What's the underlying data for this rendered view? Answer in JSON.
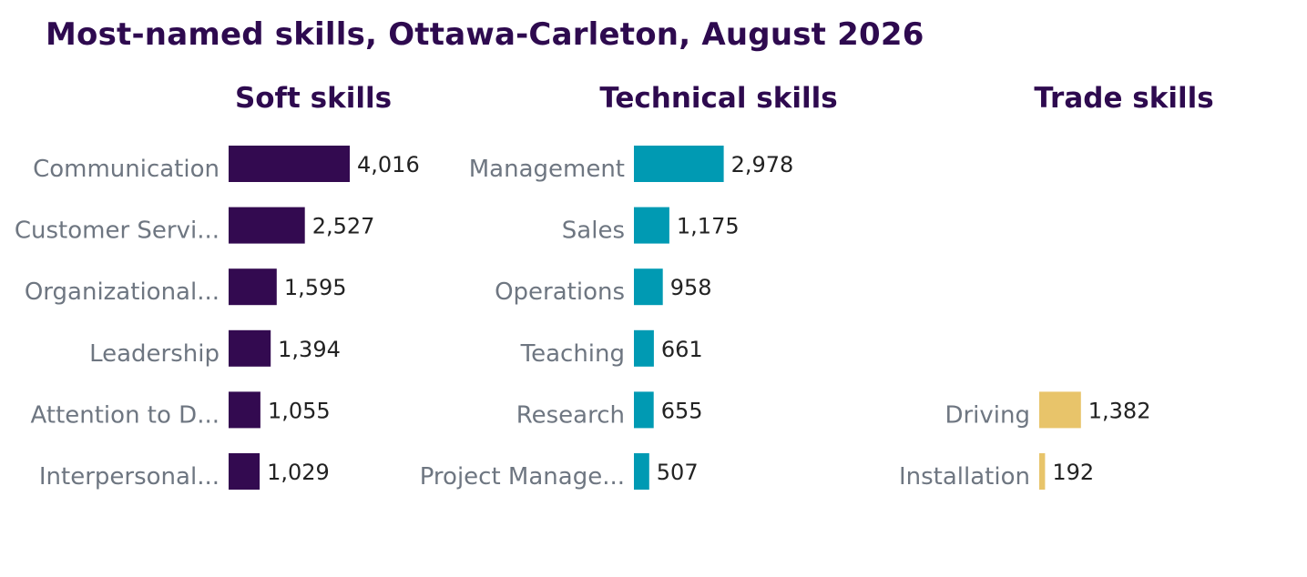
{
  "title": "Most-named skills, Ottawa-Carleton, August 2026",
  "chart_data": [
    {
      "type": "bar",
      "orientation": "horizontal",
      "title": "Soft skills",
      "color": "#330a50",
      "categories": [
        "Communication",
        "Customer Servi...",
        "Organizational...",
        "Leadership",
        "Attention to D...",
        "Interpersonal..."
      ],
      "values": [
        4016,
        2527,
        1595,
        1394,
        1055,
        1029
      ],
      "value_labels": [
        "4,016",
        "2,527",
        "1,595",
        "1,394",
        "1,055",
        "1,029"
      ]
    },
    {
      "type": "bar",
      "orientation": "horizontal",
      "title": "Technical skills",
      "color": "#009ab3",
      "categories": [
        "Management",
        "Sales",
        "Operations",
        "Teaching",
        "Research",
        "Project Manage..."
      ],
      "values": [
        2978,
        1175,
        958,
        661,
        655,
        507
      ],
      "value_labels": [
        "2,978",
        "1,175",
        "958",
        "661",
        "655",
        "507"
      ]
    },
    {
      "type": "bar",
      "orientation": "horizontal",
      "title": "Trade skills",
      "color": "#e8c46a",
      "categories": [
        "Driving",
        "Installation"
      ],
      "values": [
        1382,
        192
      ],
      "value_labels": [
        "1,382",
        "192"
      ]
    }
  ]
}
